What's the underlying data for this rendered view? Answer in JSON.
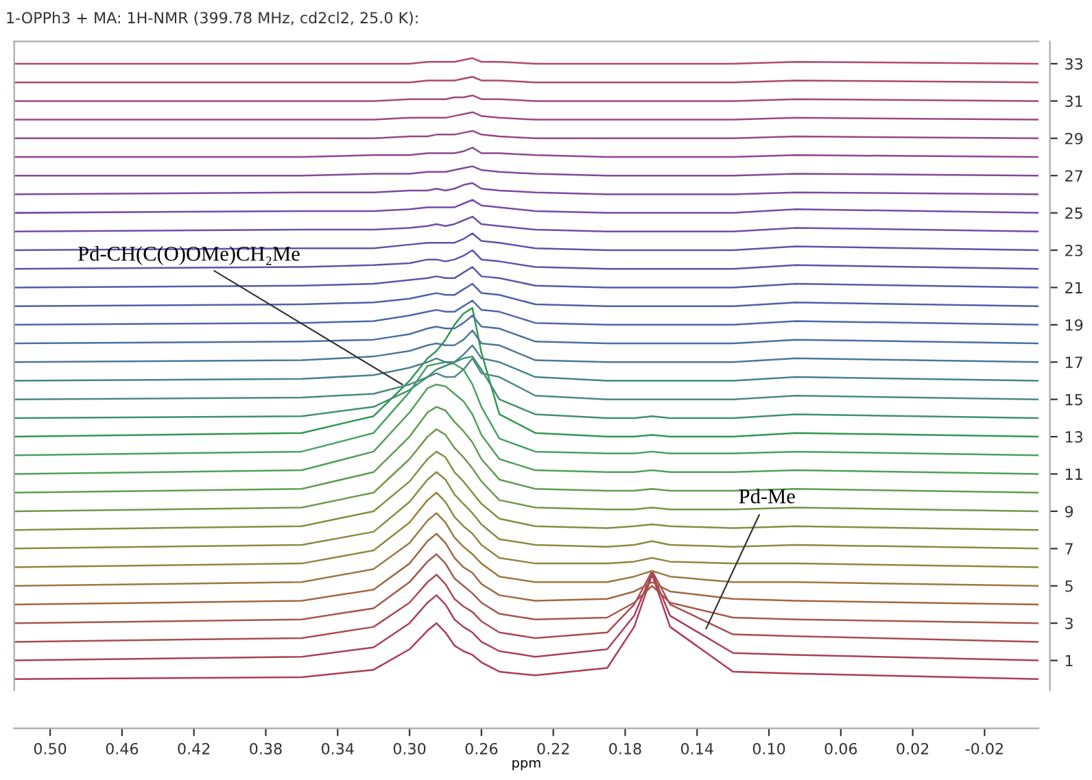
{
  "chart_data": {
    "type": "line",
    "title": "1-OPPh3 + MA: 1H-NMR (399.78 MHz, cd2cl2, 25.0 K):",
    "xlabel": "ppm",
    "x": [
      0.52,
      0.36,
      0.32,
      0.3,
      0.29,
      0.285,
      0.28,
      0.275,
      0.27,
      0.265,
      0.26,
      0.25,
      0.23,
      0.19,
      0.175,
      0.165,
      0.155,
      0.12,
      0.085,
      -0.05
    ],
    "xlim": [
      0.52,
      -0.05
    ],
    "xticks": [
      {
        "value": 0.5,
        "label": "0.50"
      },
      0.46,
      0.42,
      0.38,
      0.34,
      {
        "value": 0.3,
        "label": "0.30"
      },
      0.26,
      0.22,
      0.18,
      0.14,
      {
        "value": 0.1,
        "label": "0.10"
      },
      0.06,
      0.02,
      -0.02
    ],
    "ylim": [
      -0.6,
      34.2
    ],
    "yticks": [
      1,
      3,
      5,
      7,
      9,
      11,
      13,
      15,
      17,
      19,
      21,
      23,
      25,
      27,
      29,
      31,
      33
    ],
    "grid": false,
    "legend": false,
    "marker": "none",
    "line_style": "solid",
    "annotations": [
      {
        "text": "Pd-CH(C(O)OMe)CH₂Me",
        "x": 0.304,
        "y": 15.8
      },
      {
        "text": "Pd-Me",
        "x": 0.135,
        "y": 2.7
      }
    ],
    "series": [
      {
        "color": "#b03a55",
        "values": [
          0,
          0.1,
          0.5,
          1.6,
          2.6,
          3.0,
          2.5,
          1.8,
          1.5,
          1.3,
          0.9,
          0.4,
          0.2,
          0.6,
          2.8,
          5.6,
          2.8,
          0.4,
          0.3,
          0
        ]
      },
      {
        "color": "#a8405a",
        "values": [
          1,
          1.2,
          1.7,
          3.0,
          4.1,
          4.5,
          4.0,
          3.2,
          2.8,
          2.5,
          2.0,
          1.5,
          1.2,
          1.6,
          3.4,
          5.7,
          3.4,
          1.4,
          1.3,
          1
        ]
      },
      {
        "color": "#a84c50",
        "values": [
          2,
          2.2,
          2.8,
          4.1,
          5.2,
          5.6,
          5.1,
          4.3,
          3.9,
          3.6,
          3.1,
          2.5,
          2.2,
          2.5,
          4.0,
          5.8,
          4.0,
          2.4,
          2.3,
          2
        ]
      },
      {
        "color": "#a45848",
        "values": [
          3,
          3.2,
          3.8,
          5.2,
          6.3,
          6.7,
          6.2,
          5.4,
          5.0,
          4.6,
          4.1,
          3.5,
          3.2,
          3.3,
          4.1,
          5.0,
          4.1,
          3.3,
          3.2,
          3
        ]
      },
      {
        "color": "#a06840",
        "values": [
          4,
          4.2,
          4.8,
          6.2,
          7.4,
          7.8,
          7.3,
          6.5,
          6.0,
          5.7,
          5.1,
          4.5,
          4.2,
          4.3,
          4.7,
          5.2,
          4.7,
          4.3,
          4.2,
          4
        ]
      },
      {
        "color": "#9c7840",
        "values": [
          5,
          5.2,
          5.9,
          7.3,
          8.5,
          8.9,
          8.4,
          7.6,
          7.1,
          6.7,
          6.2,
          5.5,
          5.2,
          5.2,
          5.5,
          5.8,
          5.5,
          5.2,
          5.2,
          5
        ]
      },
      {
        "color": "#948440",
        "values": [
          6,
          6.2,
          6.9,
          8.4,
          9.6,
          10.0,
          9.5,
          8.7,
          8.2,
          7.8,
          7.2,
          6.5,
          6.2,
          6.2,
          6.3,
          6.5,
          6.3,
          6.2,
          6.2,
          6
        ]
      },
      {
        "color": "#8a8c40",
        "values": [
          7,
          7.2,
          7.9,
          9.5,
          10.7,
          11.1,
          10.7,
          9.9,
          9.4,
          8.9,
          8.3,
          7.5,
          7.2,
          7.1,
          7.2,
          7.4,
          7.2,
          7.1,
          7.2,
          7
        ]
      },
      {
        "color": "#7e9240",
        "values": [
          8,
          8.2,
          9.0,
          10.6,
          11.8,
          12.2,
          11.9,
          11.1,
          10.6,
          10.0,
          9.4,
          8.6,
          8.2,
          8.1,
          8.2,
          8.3,
          8.2,
          8.1,
          8.2,
          8
        ]
      },
      {
        "color": "#70984a",
        "values": [
          9,
          9.2,
          10.0,
          11.8,
          13.0,
          13.4,
          13.1,
          12.4,
          11.9,
          11.3,
          10.6,
          9.6,
          9.2,
          9.1,
          9.1,
          9.2,
          9.1,
          9.1,
          9.2,
          9
        ]
      },
      {
        "color": "#609c50",
        "values": [
          10,
          10.2,
          11.1,
          13.0,
          14.3,
          14.6,
          14.4,
          13.8,
          13.3,
          12.7,
          11.8,
          10.7,
          10.2,
          10.1,
          10.1,
          10.2,
          10.1,
          10.1,
          10.2,
          10
        ]
      },
      {
        "color": "#50a058",
        "values": [
          11,
          11.2,
          12.2,
          14.3,
          15.6,
          15.8,
          15.7,
          15.3,
          14.9,
          14.2,
          13.1,
          11.8,
          11.2,
          11.1,
          11.1,
          11.2,
          11.1,
          11.1,
          11.2,
          11
        ]
      },
      {
        "color": "#48a060",
        "values": [
          12,
          12.2,
          13.2,
          15.4,
          16.8,
          16.9,
          17.0,
          16.9,
          16.6,
          15.8,
          14.6,
          12.9,
          12.2,
          12.1,
          12.1,
          12.2,
          12.1,
          12.1,
          12.2,
          12
        ]
      },
      {
        "color": "#309850",
        "values": [
          13,
          13.2,
          14.1,
          16.0,
          17.2,
          17.6,
          18.2,
          19.0,
          19.6,
          19.9,
          17.5,
          14.2,
          13.2,
          13,
          13,
          13.1,
          13,
          13,
          13.2,
          13
        ]
      },
      {
        "color": "#409070",
        "values": [
          14,
          14.1,
          14.6,
          15.5,
          16.2,
          16.6,
          16.8,
          17.0,
          17.2,
          17.3,
          16.6,
          15.0,
          14.2,
          14,
          14,
          14.1,
          14,
          14,
          14.2,
          14
        ]
      },
      {
        "color": "#4a8a80",
        "values": [
          15,
          15.1,
          15.3,
          15.8,
          16.2,
          16.4,
          16.2,
          16.2,
          16.6,
          17.2,
          16.4,
          16.2,
          15.2,
          15,
          15,
          15,
          15,
          15,
          15.2,
          15
        ]
      },
      {
        "color": "#4a8090",
        "values": [
          16,
          16.1,
          16.3,
          16.7,
          17.0,
          17.2,
          17.0,
          17.0,
          17.4,
          17.9,
          17.2,
          17.0,
          16.2,
          16,
          16,
          16,
          16,
          16,
          16.2,
          16
        ]
      },
      {
        "color": "#4a7898",
        "values": [
          17,
          17.1,
          17.3,
          17.6,
          17.9,
          18.0,
          17.9,
          17.9,
          18.2,
          18.7,
          18.0,
          17.9,
          17.1,
          17,
          17,
          17,
          17,
          17,
          17.2,
          17
        ]
      },
      {
        "color": "#4a70a0",
        "values": [
          18,
          18.1,
          18.2,
          18.5,
          18.8,
          18.9,
          18.8,
          18.8,
          19.1,
          19.5,
          18.9,
          18.8,
          18.1,
          18,
          18,
          18,
          18,
          18,
          18.2,
          18
        ]
      },
      {
        "color": "#4c68a8",
        "values": [
          19,
          19.1,
          19.2,
          19.5,
          19.7,
          19.8,
          19.7,
          19.7,
          20.0,
          20.3,
          19.8,
          19.7,
          19.1,
          19,
          19,
          19,
          19,
          19,
          19.2,
          19
        ]
      },
      {
        "color": "#5060a8",
        "values": [
          20,
          20.1,
          20.2,
          20.4,
          20.6,
          20.7,
          20.6,
          20.6,
          20.9,
          21.2,
          20.7,
          20.6,
          20.1,
          20,
          20,
          20,
          20,
          20,
          20.2,
          20
        ]
      },
      {
        "color": "#5858a8",
        "values": [
          21,
          21.1,
          21.2,
          21.4,
          21.5,
          21.6,
          21.5,
          21.5,
          21.8,
          22.1,
          21.6,
          21.5,
          21.1,
          21,
          21,
          21,
          21,
          21,
          21.2,
          21
        ]
      },
      {
        "color": "#5c54a8",
        "values": [
          22,
          22.1,
          22.2,
          22.3,
          22.5,
          22.5,
          22.4,
          22.5,
          22.7,
          23.0,
          22.5,
          22.4,
          22.1,
          22,
          22,
          22,
          22,
          22,
          22.2,
          22
        ]
      },
      {
        "color": "#6450a8",
        "values": [
          23,
          23.1,
          23.1,
          23.3,
          23.4,
          23.4,
          23.4,
          23.4,
          23.6,
          23.9,
          23.5,
          23.4,
          23.1,
          23,
          23,
          23,
          23,
          23,
          23.2,
          23
        ]
      },
      {
        "color": "#6c50a8",
        "values": [
          24,
          24.1,
          24.1,
          24.2,
          24.3,
          24.4,
          24.3,
          24.4,
          24.6,
          24.8,
          24.4,
          24.3,
          24.1,
          24,
          24,
          24,
          24,
          24,
          24.2,
          24
        ]
      },
      {
        "color": "#744ca8",
        "values": [
          25,
          25.1,
          25.1,
          25.2,
          25.3,
          25.3,
          25.3,
          25.3,
          25.5,
          25.7,
          25.4,
          25.3,
          25.1,
          25,
          25,
          25,
          25,
          25,
          25.2,
          25
        ]
      },
      {
        "color": "#7c4aa0",
        "values": [
          26,
          26.1,
          26.1,
          26.2,
          26.2,
          26.3,
          26.2,
          26.3,
          26.5,
          26.6,
          26.3,
          26.2,
          26.1,
          26,
          26,
          26,
          26,
          26,
          26.1,
          26
        ]
      },
      {
        "color": "#844898",
        "values": [
          27,
          27,
          27.1,
          27.1,
          27.2,
          27.2,
          27.2,
          27.3,
          27.4,
          27.5,
          27.3,
          27.2,
          27.1,
          27,
          27,
          27,
          27,
          27,
          27.1,
          27
        ]
      },
      {
        "color": "#8c4890",
        "values": [
          28,
          28,
          28.1,
          28.1,
          28.2,
          28.2,
          28.2,
          28.2,
          28.3,
          28.5,
          28.2,
          28.2,
          28.1,
          28,
          28,
          28,
          28,
          28,
          28.1,
          28
        ]
      },
      {
        "color": "#944888",
        "values": [
          29,
          29,
          29,
          29.1,
          29.1,
          29.2,
          29.2,
          29.2,
          29.3,
          29.4,
          29.2,
          29.1,
          29,
          29,
          29,
          29,
          29,
          29,
          29.1,
          29
        ]
      },
      {
        "color": "#9c4880",
        "values": [
          30,
          30,
          30,
          30.1,
          30.1,
          30.1,
          30.1,
          30.2,
          30.3,
          30.4,
          30.2,
          30.1,
          30,
          30,
          30,
          30,
          30,
          30,
          30.1,
          30
        ]
      },
      {
        "color": "#a44878",
        "values": [
          31,
          31,
          31,
          31.1,
          31.1,
          31.1,
          31.1,
          31.2,
          31.2,
          31.3,
          31.1,
          31.1,
          31,
          31,
          31,
          31,
          31,
          31,
          31.1,
          31
        ]
      },
      {
        "color": "#ac4870",
        "values": [
          32,
          32,
          32,
          32,
          32.1,
          32.1,
          32.1,
          32.1,
          32.2,
          32.3,
          32.1,
          32.1,
          32,
          32,
          32,
          32,
          32,
          32,
          32.1,
          32
        ]
      },
      {
        "color": "#b44868",
        "values": [
          33,
          33,
          33,
          33,
          33.1,
          33.1,
          33.1,
          33.1,
          33.2,
          33.3,
          33.1,
          33.1,
          33,
          33,
          33,
          33,
          33,
          33,
          33.1,
          33
        ]
      }
    ]
  }
}
